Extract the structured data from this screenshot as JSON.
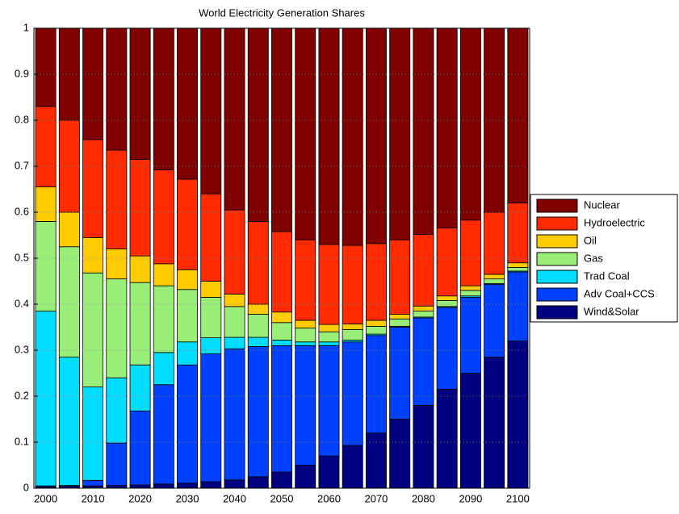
{
  "chart_data": {
    "type": "stacked-bar",
    "title": "World Electricity Generation Shares",
    "categories": [
      "2000",
      null,
      "2010",
      null,
      "2020",
      null,
      "2030",
      null,
      "2040",
      null,
      "2050",
      null,
      "2060",
      null,
      "2070",
      null,
      "2080",
      null,
      "2090",
      null,
      "2100"
    ],
    "series": [
      {
        "name": "Wind&Solar",
        "color": "#000080",
        "values": [
          0.003,
          0.004,
          0.005,
          0.006,
          0.007,
          0.009,
          0.011,
          0.014,
          0.018,
          0.025,
          0.035,
          0.05,
          0.07,
          0.093,
          0.12,
          0.15,
          0.18,
          0.215,
          0.25,
          0.285,
          0.32
        ]
      },
      {
        "name": "Adv Coal+CCS",
        "color": "#0040ff",
        "values": [
          0.002,
          0.002,
          0.012,
          0.092,
          0.161,
          0.216,
          0.257,
          0.278,
          0.285,
          0.283,
          0.275,
          0.26,
          0.24,
          0.225,
          0.212,
          0.2,
          0.19,
          0.178,
          0.165,
          0.158,
          0.15
        ]
      },
      {
        "name": "Trad Coal",
        "color": "#00ddff",
        "values": [
          0.38,
          0.279,
          0.203,
          0.142,
          0.1,
          0.07,
          0.05,
          0.035,
          0.025,
          0.02,
          0.012,
          0.008,
          0.008,
          0.004,
          0.003,
          0.002,
          0.002,
          0.002,
          0.003,
          0.002,
          0.002
        ]
      },
      {
        "name": "Gas",
        "color": "#99ee77",
        "values": [
          0.195,
          0.24,
          0.248,
          0.215,
          0.179,
          0.145,
          0.114,
          0.088,
          0.067,
          0.05,
          0.038,
          0.03,
          0.022,
          0.023,
          0.017,
          0.016,
          0.013,
          0.013,
          0.012,
          0.01,
          0.008
        ]
      },
      {
        "name": "Oil",
        "color": "#ffcc00",
        "values": [
          0.075,
          0.075,
          0.077,
          0.065,
          0.058,
          0.048,
          0.043,
          0.035,
          0.027,
          0.022,
          0.023,
          0.017,
          0.016,
          0.012,
          0.013,
          0.01,
          0.011,
          0.01,
          0.01,
          0.01,
          0.01
        ]
      },
      {
        "name": "Hydroelectric",
        "color": "#ff2a00",
        "values": [
          0.175,
          0.2,
          0.213,
          0.215,
          0.21,
          0.204,
          0.197,
          0.19,
          0.183,
          0.18,
          0.175,
          0.175,
          0.174,
          0.171,
          0.167,
          0.162,
          0.156,
          0.148,
          0.143,
          0.135,
          0.13
        ]
      },
      {
        "name": "Nuclear",
        "color": "#800000",
        "values": [
          0.17,
          0.2,
          0.242,
          0.265,
          0.285,
          0.308,
          0.328,
          0.36,
          0.395,
          0.42,
          0.442,
          0.46,
          0.47,
          0.472,
          0.468,
          0.46,
          0.448,
          0.434,
          0.417,
          0.4,
          0.38
        ]
      }
    ],
    "ylim": [
      0,
      1
    ],
    "yticks": [
      0,
      0.1,
      0.2,
      0.3,
      0.4,
      0.5,
      0.6,
      0.7,
      0.8,
      0.9,
      1
    ],
    "grid": true,
    "legend": "east"
  }
}
